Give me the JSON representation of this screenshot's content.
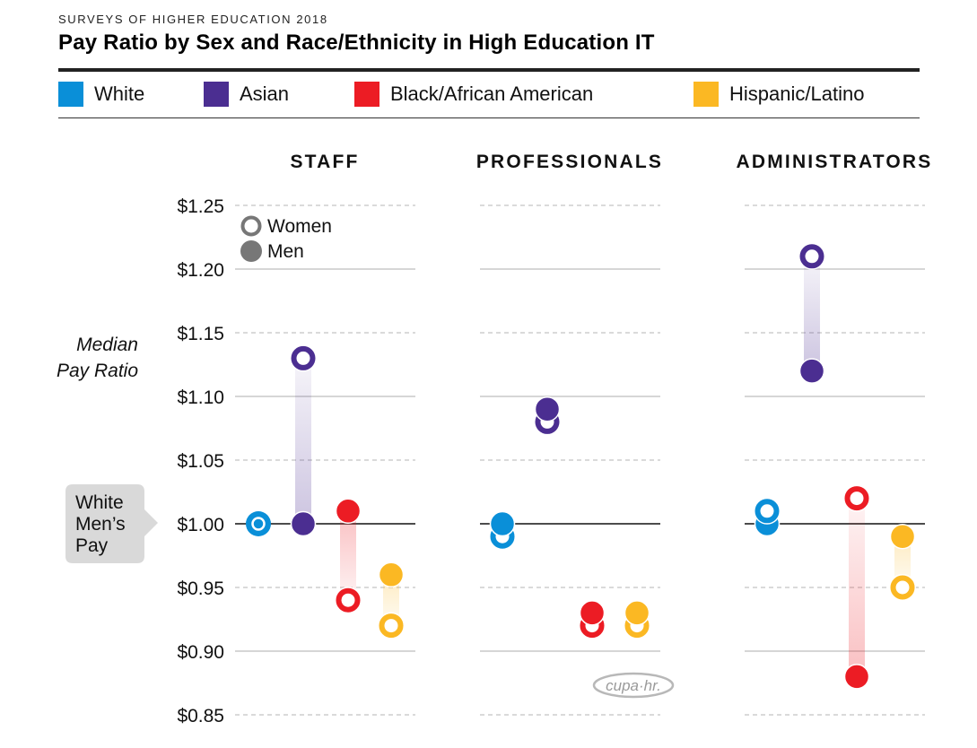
{
  "header": {
    "kicker": "SURVEYS OF HIGHER EDUCATION 2018",
    "title": "Pay Ratio by Sex and Race/Ethnicity in High Education IT"
  },
  "legend": [
    {
      "label": "White",
      "color": "#0a8fd8"
    },
    {
      "label": "Asian",
      "color": "#4b2e91"
    },
    {
      "label": "Black/African American",
      "color": "#ec1c24"
    },
    {
      "label": "Hispanic/Latino",
      "color": "#fbb823"
    }
  ],
  "sex_key": {
    "women": "Women",
    "men": "Men",
    "color": "#777777"
  },
  "callout": {
    "lines": [
      "White",
      "Men’s",
      "Pay"
    ]
  },
  "logo": "cupa·hr.",
  "chart_data": {
    "type": "dumbbell",
    "title": "Pay Ratio by Sex and Race/Ethnicity in High Education IT",
    "ylabel": "Median Pay Ratio",
    "ylabel_lines": [
      "Median",
      "Pay Ratio"
    ],
    "ylim": [
      0.85,
      1.25
    ],
    "yticks": [
      1.25,
      1.2,
      1.15,
      1.1,
      1.05,
      1.0,
      0.95,
      0.9,
      0.85
    ],
    "ytick_labels": [
      "$1.25",
      "$1.20",
      "$1.15",
      "$1.10",
      "$1.05",
      "$1.00",
      "$0.95",
      "$0.90",
      "$0.85"
    ],
    "reference_line": 1.0,
    "reference_label": "White Men's Pay",
    "groups": [
      "White",
      "Asian",
      "Black/African American",
      "Hispanic/Latino"
    ],
    "panels": [
      {
        "name": "STAFF",
        "women": [
          1.0,
          1.13,
          0.94,
          0.92
        ],
        "men": [
          1.0,
          1.0,
          1.01,
          0.96
        ]
      },
      {
        "name": "PROFESSIONALS",
        "women": [
          0.99,
          1.08,
          0.92,
          0.92
        ],
        "men": [
          1.0,
          1.09,
          0.93,
          0.93
        ]
      },
      {
        "name": "ADMINISTRATORS",
        "women": [
          1.01,
          1.21,
          1.02,
          0.95
        ],
        "men": [
          1.0,
          1.12,
          0.88,
          0.99
        ]
      }
    ]
  }
}
